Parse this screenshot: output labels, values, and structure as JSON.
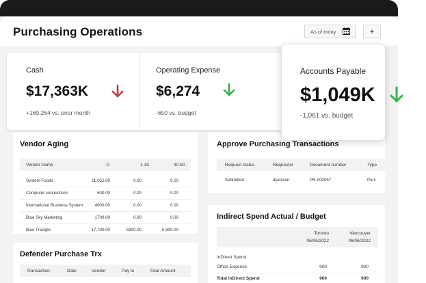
{
  "header": {
    "title": "Purchasing Operations",
    "date_label": "As of today",
    "add_label": "+"
  },
  "kpis": [
    {
      "name": "Cash",
      "value": "$17,363K",
      "sub": "+169,264 vs. prior month",
      "arrow": "down",
      "arrow_color": "#c0393b"
    },
    {
      "name": "Operating Expense",
      "value": "$6,274",
      "sub": "-650 vs. budget",
      "arrow": "down",
      "arrow_color": "#34b24a"
    }
  ],
  "kpi_pop": {
    "name": "Accounts Payable",
    "value": "$1,049K",
    "sub": "-1,061 vs. budget",
    "arrow": "down",
    "arrow_color": "#34b24a"
  },
  "vendor_aging": {
    "title": "Vendor Aging",
    "columns": [
      "Vendor Name",
      "-0",
      "1-30",
      "30-60"
    ],
    "rows": [
      [
        "System Foods",
        "21,052.00",
        "0.00",
        "0.00"
      ],
      [
        "Computer connections",
        "600.00",
        "0.00",
        "0.00"
      ],
      [
        "International Business System",
        "4600.00",
        "0.00",
        "0.00"
      ],
      [
        "Blue Sky Marketing",
        "1700.00",
        "0.00",
        "0.00"
      ],
      [
        "Blue Triangle",
        "17,700.00",
        "5900.00",
        "5,900.00"
      ]
    ]
  },
  "approve": {
    "title": "Approve Purchasing Transactions",
    "columns": [
      "Request status",
      "Requester",
      "Document number",
      "Type"
    ],
    "rows": [
      [
        "Submitted",
        "djackson",
        "PR-000057",
        "Purc"
      ]
    ]
  },
  "defender": {
    "title": "Defender Purchase Trx",
    "columns": [
      "Transaction",
      "Date",
      "Vendor",
      "Pay to",
      "Total Amount"
    ]
  },
  "indirect": {
    "title": "Indirect Spend Actual / Budget",
    "col1_name": "Toronto",
    "col1_date": "06/06/2022",
    "col2_name": "Vancouver",
    "col2_date": "06/06/2022",
    "rows": [
      {
        "label": "InDirect Spend",
        "v1": "",
        "v2": "",
        "bold": false
      },
      {
        "label": "Office Expense",
        "v1": "900",
        "v2": "900",
        "bold": false
      },
      {
        "label": "Total InDirect Spend",
        "v1": "900",
        "v2": "900",
        "bold": true
      }
    ]
  }
}
